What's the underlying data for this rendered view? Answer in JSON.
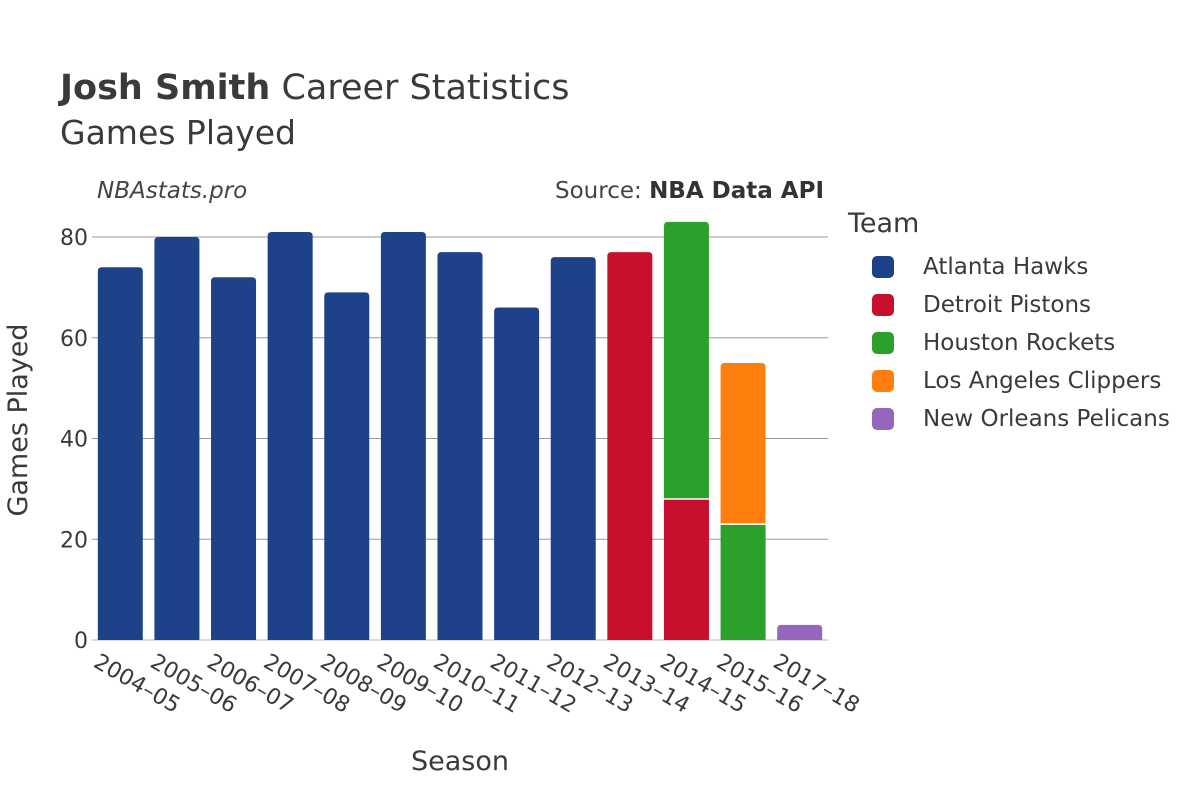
{
  "header": {
    "title_bold": "Josh Smith",
    "title_rest": " Career Statistics",
    "subtitle": "Games Played",
    "watermark": "NBAstats.pro",
    "source_prefix": "Source: ",
    "source_name": "NBA Data API"
  },
  "legend": {
    "title": "Team",
    "items": [
      {
        "label": "Atlanta Hawks",
        "color": "#1d428a"
      },
      {
        "label": "Detroit Pistons",
        "color": "#c8102e"
      },
      {
        "label": "Houston Rockets",
        "color": "#2ca02c"
      },
      {
        "label": "Los Angeles Clippers",
        "color": "#ff7f0e"
      },
      {
        "label": "New Orleans Pelicans",
        "color": "#9467bd"
      }
    ]
  },
  "chart_data": {
    "type": "bar",
    "stacked": true,
    "title": "Josh Smith Career Statistics",
    "subtitle": "Games Played",
    "xlabel": "Season",
    "ylabel": "Games Played",
    "ylim": [
      0,
      85
    ],
    "yticks": [
      0,
      20,
      40,
      60,
      80
    ],
    "grid": true,
    "legend_position": "right",
    "categories": [
      "2004–05",
      "2005–06",
      "2006–07",
      "2007–08",
      "2008–09",
      "2009–10",
      "2010–11",
      "2011–12",
      "2012–13",
      "2013–14",
      "2014–15",
      "2015–16",
      "2017–18"
    ],
    "series": [
      {
        "name": "Atlanta Hawks",
        "color": "#1d428a",
        "values": [
          74,
          80,
          72,
          81,
          69,
          81,
          77,
          66,
          76,
          0,
          0,
          0,
          0
        ]
      },
      {
        "name": "Detroit Pistons",
        "color": "#c8102e",
        "values": [
          0,
          0,
          0,
          0,
          0,
          0,
          0,
          0,
          0,
          77,
          28,
          0,
          0
        ]
      },
      {
        "name": "Houston Rockets",
        "color": "#2ca02c",
        "values": [
          0,
          0,
          0,
          0,
          0,
          0,
          0,
          0,
          0,
          0,
          55,
          23,
          0
        ]
      },
      {
        "name": "Los Angeles Clippers",
        "color": "#ff7f0e",
        "values": [
          0,
          0,
          0,
          0,
          0,
          0,
          0,
          0,
          0,
          0,
          0,
          32,
          0
        ]
      },
      {
        "name": "New Orleans Pelicans",
        "color": "#9467bd",
        "values": [
          0,
          0,
          0,
          0,
          0,
          0,
          0,
          0,
          0,
          0,
          0,
          0,
          3
        ]
      }
    ]
  }
}
